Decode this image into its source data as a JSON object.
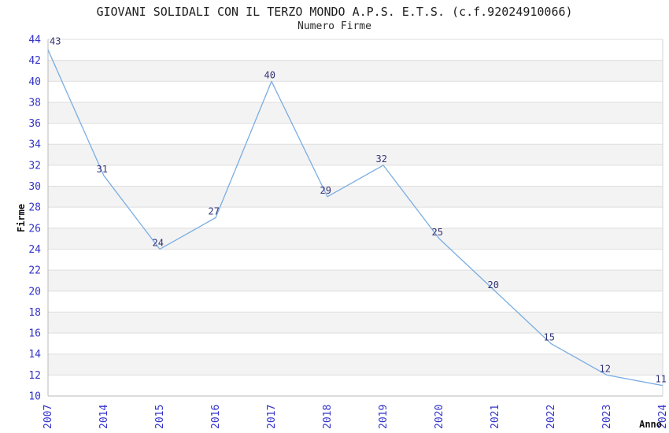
{
  "chart_data": {
    "type": "line",
    "title": "GIOVANI SOLIDALI CON IL TERZO MONDO A.P.S. E.T.S. (c.f.92024910066)",
    "subtitle": "Numero Firme",
    "xlabel": "Anno",
    "ylabel": "Firme",
    "categories": [
      "2007",
      "2014",
      "2015",
      "2016",
      "2017",
      "2018",
      "2019",
      "2020",
      "2021",
      "2022",
      "2023",
      "2024"
    ],
    "values": [
      43,
      31,
      24,
      27,
      40,
      29,
      32,
      25,
      20,
      15,
      12,
      11
    ],
    "ylim": [
      10,
      44
    ],
    "ytick_step": 2,
    "grid": true,
    "legend": "none",
    "colors": {
      "line": "#7aade2",
      "tick_label": "#3333cc",
      "data_label": "#333377",
      "gridline": "#dedede",
      "band_even": "#ffffff",
      "band_odd": "#f3f3f3",
      "axis_line": "#b8b8b8",
      "border": "#d6d6d6"
    }
  }
}
